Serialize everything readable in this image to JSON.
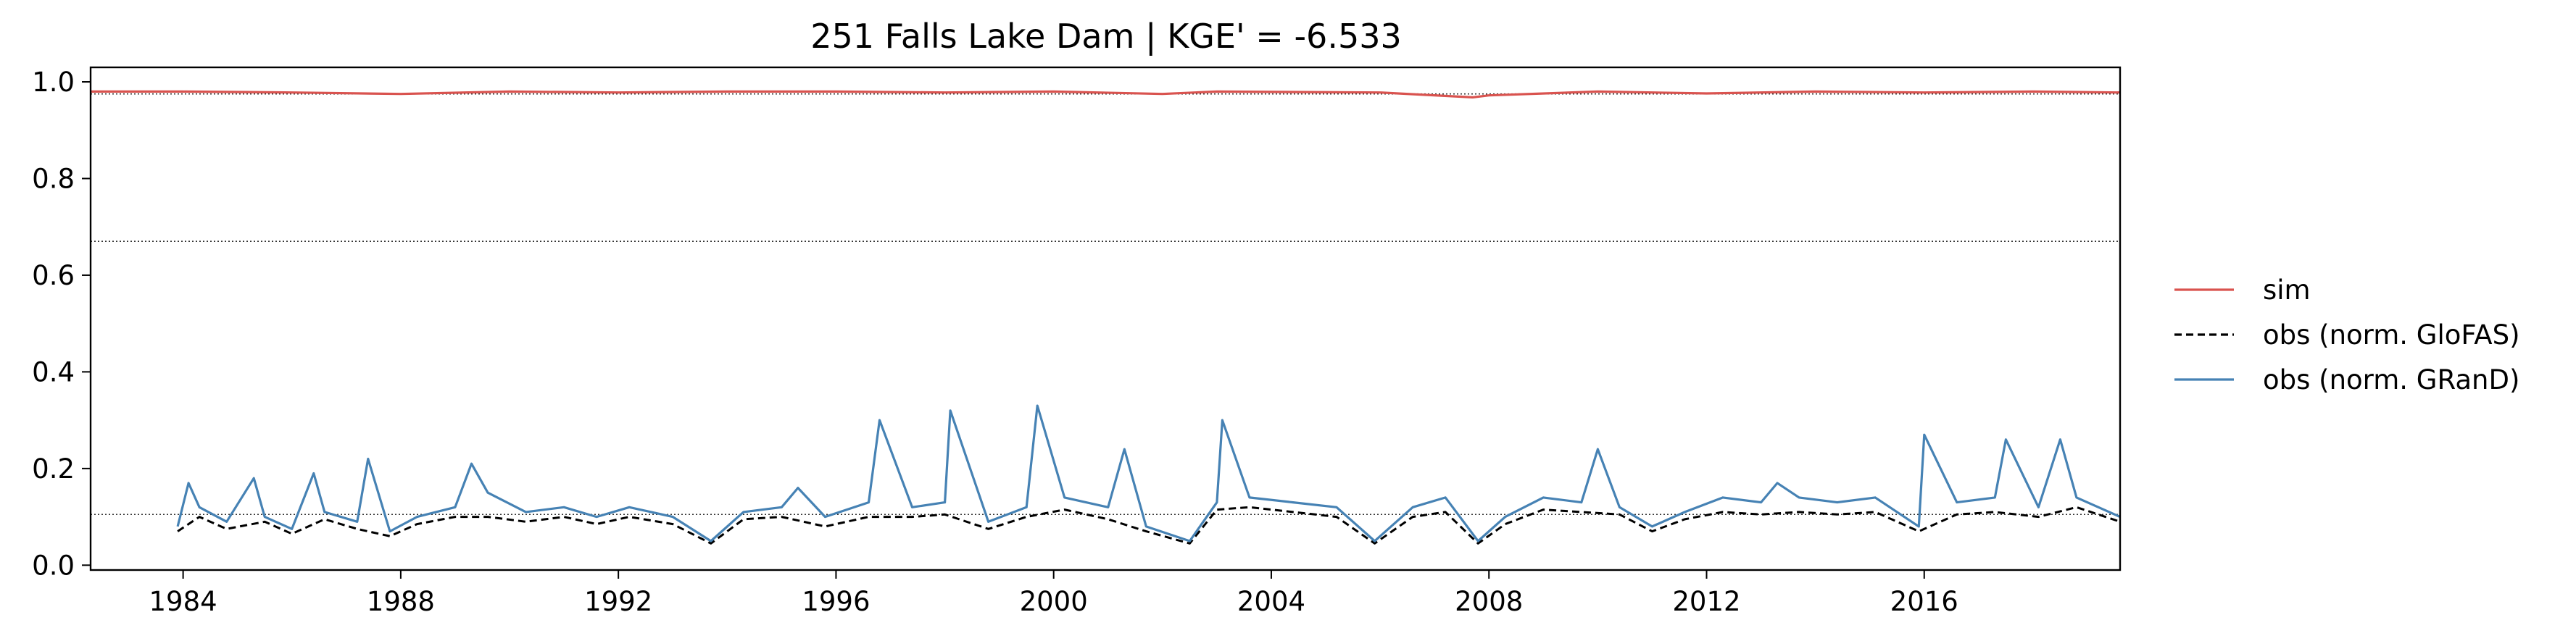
{
  "chart_data": {
    "type": "line",
    "title": "251  Falls Lake Dam | KGE' = -6.533",
    "xlabel": "",
    "ylabel": "",
    "xlim": [
      1982.3,
      2019.6
    ],
    "ylim": [
      -0.01,
      1.03
    ],
    "x_ticks": [
      1984,
      1988,
      1992,
      1996,
      2000,
      2004,
      2008,
      2012,
      2016
    ],
    "x_tick_labels": [
      "1984",
      "1988",
      "1992",
      "1996",
      "2000",
      "2004",
      "2008",
      "2012",
      "2016"
    ],
    "y_ticks": [
      0.0,
      0.2,
      0.4,
      0.6,
      0.8,
      1.0
    ],
    "y_tick_labels": [
      "0.0",
      "0.2",
      "0.4",
      "0.6",
      "0.8",
      "1.0"
    ],
    "grid": false,
    "legend_position": "right-outside",
    "reference_lines": [
      0.975,
      0.67,
      0.105
    ],
    "series": [
      {
        "name": "sim",
        "color": "#d9534f",
        "style": "solid",
        "x": [
          1982.3,
          1984,
          1986,
          1988,
          1990,
          1992,
          1994,
          1996,
          1998,
          2000,
          2002,
          2003,
          2006,
          2007.7,
          2008,
          2010,
          2012,
          2014,
          2016,
          2018,
          2019.6
        ],
        "values": [
          0.98,
          0.98,
          0.978,
          0.975,
          0.98,
          0.978,
          0.98,
          0.98,
          0.978,
          0.98,
          0.975,
          0.98,
          0.978,
          0.968,
          0.972,
          0.98,
          0.976,
          0.98,
          0.978,
          0.98,
          0.978
        ]
      },
      {
        "name": "obs (norm. GloFAS)",
        "color": "#000000",
        "style": "dashed",
        "x": [
          1983.9,
          1984.3,
          1984.8,
          1985.5,
          1986.0,
          1986.6,
          1987.2,
          1987.8,
          1988.3,
          1989.0,
          1989.6,
          1990.3,
          1991.0,
          1991.6,
          1992.2,
          1993.0,
          1993.7,
          1994.3,
          1995.0,
          1995.8,
          1996.6,
          1997.4,
          1998.0,
          1998.8,
          1999.5,
          2000.2,
          2001.0,
          2001.7,
          2002.5,
          2003.0,
          2003.6,
          2004.4,
          2005.2,
          2005.9,
          2006.6,
          2007.2,
          2007.8,
          2008.3,
          2009.0,
          2009.7,
          2010.4,
          2011.0,
          2011.6,
          2012.3,
          2013.0,
          2013.7,
          2014.4,
          2015.1,
          2015.9,
          2016.6,
          2017.3,
          2018.1,
          2018.8,
          2019.6
        ],
        "values": [
          0.07,
          0.1,
          0.075,
          0.09,
          0.065,
          0.095,
          0.075,
          0.06,
          0.085,
          0.1,
          0.1,
          0.09,
          0.1,
          0.085,
          0.1,
          0.085,
          0.045,
          0.095,
          0.1,
          0.08,
          0.1,
          0.1,
          0.105,
          0.075,
          0.1,
          0.115,
          0.095,
          0.07,
          0.045,
          0.115,
          0.12,
          0.11,
          0.1,
          0.045,
          0.1,
          0.11,
          0.045,
          0.085,
          0.115,
          0.11,
          0.105,
          0.07,
          0.095,
          0.11,
          0.105,
          0.11,
          0.105,
          0.11,
          0.07,
          0.105,
          0.11,
          0.1,
          0.12,
          0.09
        ]
      },
      {
        "name": "obs (norm. GRanD)",
        "color": "#4682b4",
        "style": "solid",
        "x": [
          1983.9,
          1984.1,
          1984.3,
          1984.8,
          1985.3,
          1985.5,
          1986.0,
          1986.4,
          1986.6,
          1987.2,
          1987.4,
          1987.8,
          1988.3,
          1989.0,
          1989.3,
          1989.6,
          1990.3,
          1991.0,
          1991.6,
          1992.2,
          1993.0,
          1993.7,
          1994.3,
          1995.0,
          1995.3,
          1995.8,
          1996.6,
          1996.8,
          1997.4,
          1998.0,
          1998.1,
          1998.8,
          1999.5,
          1999.7,
          2000.2,
          2001.0,
          2001.3,
          2001.7,
          2002.5,
          2003.0,
          2003.1,
          2003.6,
          2004.4,
          2005.2,
          2005.9,
          2006.6,
          2007.2,
          2007.8,
          2008.3,
          2009.0,
          2009.7,
          2010.0,
          2010.4,
          2011.0,
          2011.6,
          2012.3,
          2013.0,
          2013.3,
          2013.7,
          2014.4,
          2015.1,
          2015.9,
          2016.0,
          2016.6,
          2017.3,
          2017.5,
          2018.1,
          2018.5,
          2018.8,
          2019.6
        ],
        "values": [
          0.08,
          0.17,
          0.12,
          0.09,
          0.18,
          0.1,
          0.075,
          0.19,
          0.11,
          0.09,
          0.22,
          0.07,
          0.1,
          0.12,
          0.21,
          0.15,
          0.11,
          0.12,
          0.1,
          0.12,
          0.1,
          0.05,
          0.11,
          0.12,
          0.16,
          0.1,
          0.13,
          0.3,
          0.12,
          0.13,
          0.32,
          0.09,
          0.12,
          0.33,
          0.14,
          0.12,
          0.24,
          0.08,
          0.05,
          0.13,
          0.3,
          0.14,
          0.13,
          0.12,
          0.05,
          0.12,
          0.14,
          0.05,
          0.1,
          0.14,
          0.13,
          0.24,
          0.12,
          0.08,
          0.11,
          0.14,
          0.13,
          0.17,
          0.14,
          0.13,
          0.14,
          0.08,
          0.27,
          0.13,
          0.14,
          0.26,
          0.12,
          0.26,
          0.14,
          0.1
        ]
      }
    ]
  }
}
